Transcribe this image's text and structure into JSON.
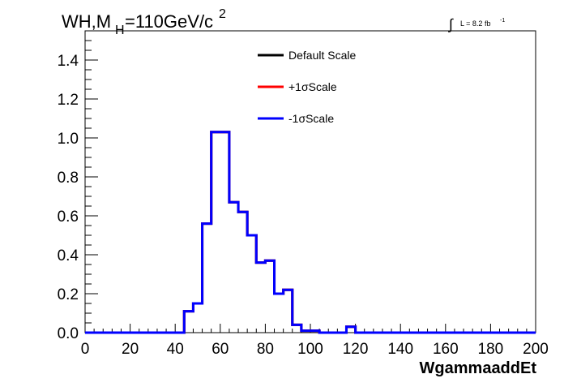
{
  "chart_data": {
    "type": "line",
    "title": {
      "main": "WH,M",
      "sub": "H",
      "tail": "=110GeV/c",
      "sup": "2"
    },
    "lumi": {
      "integral_symbol": "∫",
      "text": "L = 8.2 fb",
      "sup": "-1"
    },
    "xlabel": "WgammaaddEt",
    "ylabel": "",
    "xlim": [
      0,
      200
    ],
    "ylim": [
      0,
      1.55
    ],
    "xticks": [
      0,
      20,
      40,
      60,
      80,
      100,
      120,
      140,
      160,
      180,
      200
    ],
    "xtick_labels": [
      "0",
      "20",
      "40",
      "60",
      "80",
      "100",
      "120",
      "140",
      "160",
      "180",
      "200"
    ],
    "yticks": [
      0,
      0.2,
      0.4,
      0.6,
      0.8,
      1.0,
      1.2,
      1.4
    ],
    "ytick_labels": [
      "0.0",
      "0.2",
      "0.4",
      "0.6",
      "0.8",
      "1.0",
      "1.2",
      "1.4"
    ],
    "bin_width": 4,
    "bin_edges": [
      0,
      4,
      8,
      12,
      16,
      20,
      24,
      28,
      32,
      36,
      40,
      44,
      48,
      52,
      56,
      60,
      64,
      68,
      72,
      76,
      80,
      84,
      88,
      92,
      96,
      100,
      104,
      108,
      112,
      116,
      120,
      124,
      128,
      132,
      136,
      140,
      144,
      148,
      152,
      156,
      160,
      164,
      168,
      172,
      176,
      180,
      184,
      188,
      192,
      196,
      200
    ],
    "series": [
      {
        "name": "Default Scale",
        "color": "#000000",
        "values": [
          0,
          0,
          0,
          0,
          0,
          0,
          0,
          0,
          0,
          0,
          0,
          0.11,
          0.15,
          0.56,
          1.03,
          1.03,
          0.67,
          0.62,
          0.5,
          0.36,
          0.37,
          0.2,
          0.22,
          0.04,
          0.01,
          0.01,
          0,
          0,
          0,
          0.03,
          0,
          0,
          0,
          0,
          0,
          0,
          0,
          0,
          0,
          0,
          0,
          0,
          0,
          0,
          0,
          0,
          0,
          0,
          0,
          0
        ]
      },
      {
        "name": "+1σScale",
        "color": "#ff0000",
        "values": [
          0,
          0,
          0,
          0,
          0,
          0,
          0,
          0,
          0,
          0,
          0,
          0.11,
          0.15,
          0.56,
          1.03,
          1.03,
          0.67,
          0.62,
          0.5,
          0.36,
          0.37,
          0.2,
          0.22,
          0.04,
          0.01,
          0.01,
          0,
          0,
          0,
          0.03,
          0,
          0,
          0,
          0,
          0,
          0,
          0,
          0,
          0,
          0,
          0,
          0,
          0,
          0,
          0,
          0,
          0,
          0,
          0,
          0
        ]
      },
      {
        "name": "-1σScale",
        "color": "#0000ff",
        "values": [
          0,
          0,
          0,
          0,
          0,
          0,
          0,
          0,
          0,
          0,
          0,
          0.11,
          0.15,
          0.56,
          1.03,
          1.03,
          0.67,
          0.62,
          0.5,
          0.36,
          0.37,
          0.2,
          0.22,
          0.04,
          0.01,
          0.01,
          0,
          0,
          0,
          0.03,
          0,
          0,
          0,
          0,
          0,
          0,
          0,
          0,
          0,
          0,
          0,
          0,
          0,
          0,
          0,
          0,
          0,
          0,
          0,
          0
        ]
      }
    ],
    "legend": {
      "placement": "top-center",
      "entries": [
        "Default Scale",
        "+1σScale",
        "-1σScale"
      ]
    },
    "grid": false
  }
}
